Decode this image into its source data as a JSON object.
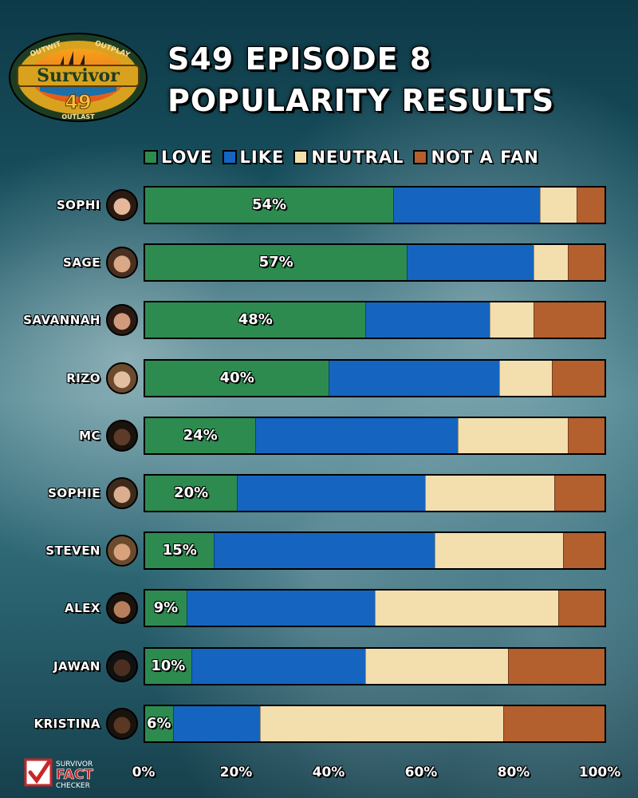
{
  "logo": {
    "name": "Survivor",
    "season_number": "49",
    "ring_top_left": "OUTWIT",
    "ring_top_right": "OUTPLAY",
    "ring_bottom": "OUTLAST"
  },
  "title_line1": "S49 EPISODE 8",
  "title_line2": "POPULARITY RESULTS",
  "colors": {
    "love": "#2e8b4f",
    "like": "#1565c0",
    "neutral": "#f3deae",
    "not_a_fan": "#b35f2e"
  },
  "footer_logo": {
    "line1": "SURVIVOR",
    "line2": "FACT",
    "line3": "CHECKER"
  },
  "chart_data": {
    "type": "bar",
    "orientation": "horizontal",
    "stacked": true,
    "title": "S49 EPISODE 8 POPULARITY RESULTS",
    "legend_position": "top",
    "xlim": [
      0,
      100
    ],
    "x_tick_labels": [
      "0%",
      "20%",
      "40%",
      "60%",
      "80%",
      "100%"
    ],
    "categories": [
      "SOPHI",
      "SAGE",
      "SAVANNAH",
      "RIZO",
      "MC",
      "SOPHIE",
      "STEVEN",
      "ALEX",
      "JAWAN",
      "KRISTINA"
    ],
    "series": [
      {
        "name": "LOVE",
        "values": [
          54,
          57,
          48,
          40,
          24,
          20,
          15,
          9,
          10,
          6
        ]
      },
      {
        "name": "LIKE",
        "values": [
          32,
          27.5,
          27,
          37,
          44,
          41,
          48,
          41,
          38,
          19
        ]
      },
      {
        "name": "NEUTRAL",
        "values": [
          8,
          7.5,
          9.5,
          11.5,
          24,
          28,
          28,
          40,
          31,
          53
        ]
      },
      {
        "name": "NOT A FAN",
        "values": [
          6,
          8,
          15.5,
          11.5,
          8,
          11,
          9,
          10,
          21,
          22
        ]
      }
    ],
    "value_labels": [
      "54%",
      "57%",
      "48%",
      "40%",
      "24%",
      "20%",
      "15%",
      "9%",
      "10%",
      "6%"
    ]
  }
}
